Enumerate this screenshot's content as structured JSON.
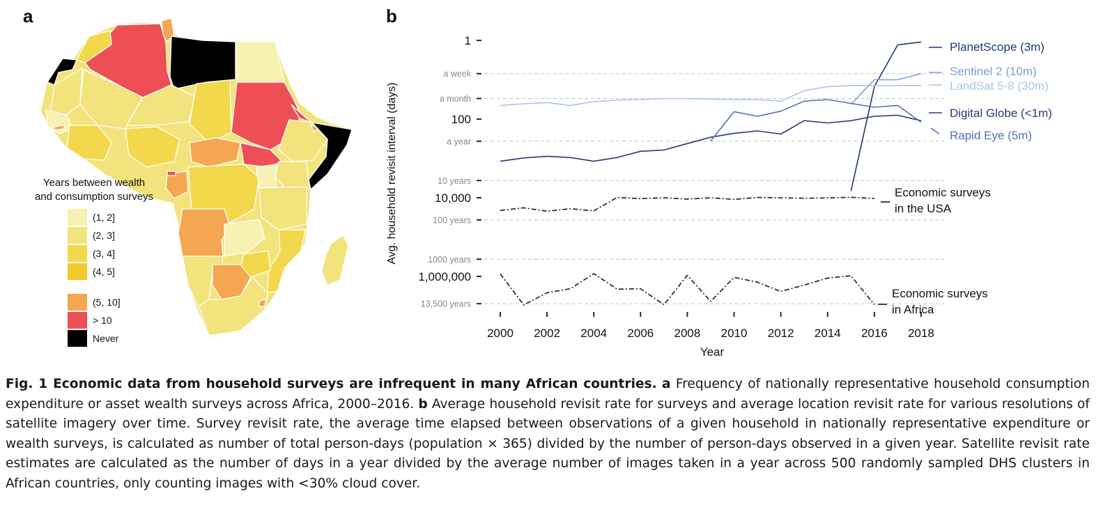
{
  "panel_a": {
    "letter": "a",
    "legend_title_lines": [
      "Years between wealth",
      "and consumption surveys"
    ],
    "legend_items": [
      {
        "label": "(1, 2]",
        "color": "#f7f1b2"
      },
      {
        "label": "(2, 3]",
        "color": "#f2e37c"
      },
      {
        "label": "(3, 4]",
        "color": "#f2d84a"
      },
      {
        "label": "(4, 5]",
        "color": "#f2ca2c"
      },
      {
        "label": "(5, 10]",
        "color": "#f5a650"
      },
      {
        "label": "> 10",
        "color": "#ee4f55"
      },
      {
        "label": "Never",
        "color": "#000000"
      }
    ]
  },
  "panel_b": {
    "letter": "b"
  },
  "chart_data": {
    "type": "line",
    "xlabel": "Year",
    "ylabel": "Avg. household revisit interval (days)",
    "y_scale": "log (reversed, 1 at top)",
    "x_ticks": [
      2000,
      2002,
      2004,
      2006,
      2008,
      2010,
      2012,
      2014,
      2016,
      2018
    ],
    "y_ticks": [
      {
        "days": 1,
        "label": "1",
        "style": "major"
      },
      {
        "days": 100,
        "label": "100",
        "style": "major"
      },
      {
        "days": 10000,
        "label": "10,000",
        "style": "major"
      },
      {
        "days": 1000000,
        "label": "1,000,000",
        "style": "major"
      },
      {
        "days": 7,
        "label": "a week",
        "style": "minor"
      },
      {
        "days": 30,
        "label": "a month",
        "style": "minor"
      },
      {
        "days": 365,
        "label": "a year",
        "style": "minor"
      },
      {
        "days": 3650,
        "label": "10 years",
        "style": "minor"
      },
      {
        "days": 36500,
        "label": "100 years",
        "style": "minor"
      },
      {
        "days": 365000,
        "label": "1000 years",
        "style": "minor"
      },
      {
        "days": 4927500,
        "label": "13,500 years",
        "style": "minor"
      }
    ],
    "grid": "dashed horizontal lines at minor ticks",
    "legend": "labels at right end of lines",
    "series": [
      {
        "name": "PlanetScope (3m)",
        "color": "#1f3a6e",
        "x": [
          2015,
          2016,
          2017,
          2018
        ],
        "y": [
          6800,
          15,
          1.3,
          1.1
        ]
      },
      {
        "name": "Sentinel 2 (10m)",
        "color": "#7f9fd1",
        "x": [
          2015,
          2016,
          2017,
          2018
        ],
        "y": [
          42,
          10,
          10,
          7
        ]
      },
      {
        "name": "LandSat 5-8 (30m)",
        "color": "#a9c6e8",
        "x": [
          2000,
          2001,
          2002,
          2003,
          2004,
          2005,
          2006,
          2007,
          2008,
          2009,
          2010,
          2011,
          2012,
          2013,
          2014,
          2015,
          2016,
          2017,
          2018
        ],
        "y": [
          45,
          41,
          38,
          45,
          36,
          33,
          32,
          30,
          30,
          31,
          32,
          32,
          35,
          19,
          15,
          14,
          14,
          14,
          14
        ]
      },
      {
        "name": "Digital Globe (<1m)",
        "color": "#263b73",
        "x": [
          2000,
          2001,
          2002,
          2003,
          2004,
          2005,
          2006,
          2007,
          2008,
          2009,
          2010,
          2011,
          2012,
          2013,
          2014,
          2015,
          2016,
          2017,
          2018
        ],
        "y": [
          1180,
          970,
          880,
          950,
          1180,
          950,
          660,
          610,
          420,
          290,
          230,
          200,
          240,
          110,
          125,
          110,
          85,
          80,
          110
        ]
      },
      {
        "name": "Rapid Eye (5m)",
        "color": "#5470b0",
        "x": [
          2009,
          2010,
          2011,
          2012,
          2013,
          2014,
          2015,
          2016,
          2017,
          2018
        ],
        "y": [
          360,
          65,
          85,
          63,
          35,
          32,
          40,
          50,
          45,
          120
        ]
      },
      {
        "name": "Economic surveys in the USA",
        "color": "#1a1a1a",
        "x": [
          2000,
          2001,
          2002,
          2003,
          2004,
          2005,
          2006,
          2007,
          2008,
          2009,
          2010,
          2011,
          2012,
          2013,
          2014,
          2015,
          2016
        ],
        "y": [
          21000,
          18000,
          22000,
          19000,
          21500,
          9800,
          10500,
          10000,
          10800,
          10000,
          11000,
          9800,
          10000,
          10300,
          10100,
          9700,
          10400
        ]
      },
      {
        "name": "Economic surveys in Africa",
        "color": "#1a1a1a",
        "x": [
          2000,
          2001,
          2002,
          2003,
          2004,
          2005,
          2006,
          2007,
          2008,
          2009,
          2010,
          2011,
          2012,
          2013,
          2014,
          2015,
          2016
        ],
        "y": [
          860000,
          5300000,
          2600000,
          2050000,
          850000,
          2100000,
          2050000,
          5200000,
          940000,
          4300000,
          1050000,
          1400000,
          2400000,
          1650000,
          1100000,
          960000,
          5200000
        ]
      }
    ],
    "series_labels": [
      {
        "text": "PlanetScope (3m)",
        "series": 0,
        "lines": 1
      },
      {
        "text": "Sentinel 2 (10m)",
        "series": 1,
        "lines": 1
      },
      {
        "text": "LandSat 5-8 (30m)",
        "series": 2,
        "lines": 1
      },
      {
        "text": "Digital Globe (<1m)",
        "series": 3,
        "lines": 1
      },
      {
        "text": "Rapid Eye (5m)",
        "series": 4,
        "lines": 1
      },
      {
        "text": [
          "Economic surveys",
          "in the USA"
        ],
        "series": 5,
        "lines": 2
      },
      {
        "text": [
          "Economic surveys",
          "in Africa"
        ],
        "series": 6,
        "lines": 2
      }
    ]
  },
  "caption": {
    "fig_label": "Fig. 1 Economic data from household surveys are infrequent in many African countries.",
    "a_marker": "a",
    "a_text": "Frequency of nationally representative household consumption expenditure or asset wealth surveys across Africa, 2000–2016.",
    "b_marker": "b",
    "b_text": "Average household revisit rate for surveys and average location revisit rate for various resolutions of satellite imagery over time. Survey revisit rate, the average time elapsed between observations of a given household in nationally representative expenditure or wealth surveys, is calculated as number of total person-days (population × 365) divided by the number of person-days observed in a given year. Satellite revisit rate estimates are calculated as the number of days in a year divided by the average number of images taken in a year across 500 randomly sampled DHS clusters in African countries, only counting images with  <30% cloud cover."
  }
}
